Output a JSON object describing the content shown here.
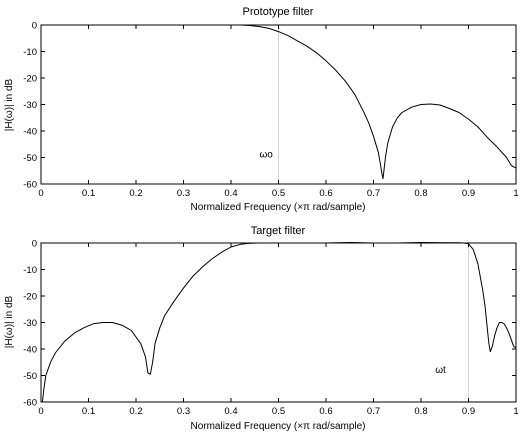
{
  "colors": {
    "axis": "#000000",
    "curve": "#000000",
    "background": "#ffffff",
    "refline": "#c8c8c8"
  },
  "chart_data": [
    {
      "type": "line",
      "title": "Prototype filter",
      "xlabel": "Normalized Frequency  (×π rad/sample)",
      "ylabel": "|H(ω)| in dB",
      "xlim": [
        0,
        1
      ],
      "ylim": [
        -60,
        0
      ],
      "xticks": [
        "0",
        "0.1",
        "0.2",
        "0.3",
        "0.4",
        "0.5",
        "0.6",
        "0.7",
        "0.8",
        "0.9",
        "1"
      ],
      "yticks": [
        "0",
        "-10",
        "-20",
        "-30",
        "-40",
        "-50",
        "-60"
      ],
      "grid": false,
      "annotation": {
        "text": "ωo",
        "x": 0.46,
        "y": -50
      },
      "reference_line_x": 0.5,
      "series": [
        {
          "x": [
            0.4,
            0.42,
            0.44,
            0.46,
            0.48,
            0.5,
            0.52,
            0.54,
            0.56,
            0.58,
            0.6,
            0.62,
            0.64,
            0.66,
            0.67,
            0.68,
            0.69,
            0.7,
            0.71,
            0.715,
            0.718,
            0.72,
            0.725,
            0.73,
            0.74,
            0.75,
            0.76,
            0.78,
            0.8,
            0.82,
            0.84,
            0.86,
            0.88,
            0.9,
            0.92,
            0.94,
            0.96,
            0.98,
            0.99,
            1.0
          ],
          "y": [
            0,
            0,
            -0.2,
            -0.6,
            -1.3,
            -2.5,
            -4,
            -6,
            -8,
            -10.5,
            -13.5,
            -17,
            -21,
            -26,
            -29.5,
            -33,
            -37,
            -42,
            -48,
            -53,
            -56.5,
            -58,
            -50,
            -44.5,
            -38.5,
            -35,
            -33,
            -31,
            -30,
            -29.8,
            -30.2,
            -31.5,
            -33,
            -35.5,
            -38.5,
            -42.5,
            -46,
            -50,
            -53,
            -54
          ]
        }
      ]
    },
    {
      "type": "line",
      "title": "Target filter",
      "xlabel": "Normalized Frequency  (×π rad/sample)",
      "ylabel": "|H(ω)| in dB",
      "xlim": [
        0,
        1
      ],
      "ylim": [
        -60,
        0
      ],
      "xticks": [
        "0",
        "0.1",
        "0.2",
        "0.3",
        "0.4",
        "0.5",
        "0.6",
        "0.7",
        "0.8",
        "0.9",
        "1"
      ],
      "yticks": [
        "0",
        "-10",
        "-20",
        "-30",
        "-40",
        "-50",
        "-60"
      ],
      "grid": false,
      "annotation": {
        "text": "ωt",
        "x": 0.83,
        "y": -49
      },
      "reference_line_x": 0.9,
      "series": [
        {
          "x": [
            0.003,
            0.006,
            0.01,
            0.02,
            0.03,
            0.05,
            0.07,
            0.09,
            0.11,
            0.13,
            0.15,
            0.17,
            0.19,
            0.21,
            0.22,
            0.225,
            0.23,
            0.235,
            0.24,
            0.25,
            0.26,
            0.28,
            0.3,
            0.32,
            0.34,
            0.36,
            0.38,
            0.4,
            0.42,
            0.44,
            0.46,
            0.48,
            0.5,
            0.55,
            0.6,
            0.65,
            0.7,
            0.75,
            0.8,
            0.85,
            0.87,
            0.88,
            0.89,
            0.9,
            0.91,
            0.92,
            0.93,
            0.935,
            0.94,
            0.943,
            0.946,
            0.95,
            0.955,
            0.96,
            0.965,
            0.97,
            0.975,
            0.98,
            0.985,
            0.99,
            0.995,
            1.0
          ],
          "y": [
            -60,
            -55,
            -50,
            -45,
            -41.5,
            -37,
            -34,
            -32,
            -30.5,
            -30,
            -30,
            -31,
            -33,
            -38,
            -43,
            -49,
            -49.5,
            -45,
            -38,
            -32,
            -27.5,
            -22,
            -17,
            -12.5,
            -9,
            -6,
            -3.5,
            -1.5,
            -0.5,
            -0.1,
            0,
            0,
            0,
            0,
            0,
            0.2,
            0,
            0,
            0.2,
            0.1,
            0.1,
            0.1,
            0,
            -0.3,
            -2.5,
            -8,
            -18,
            -24,
            -33,
            -38,
            -41,
            -39,
            -35,
            -32,
            -30,
            -30,
            -30.5,
            -32,
            -34,
            -36.5,
            -39,
            -39.5
          ]
        }
      ]
    }
  ]
}
